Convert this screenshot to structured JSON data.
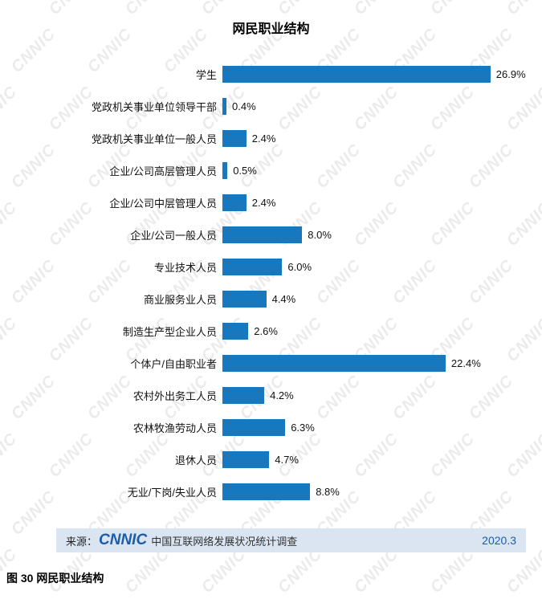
{
  "title": "网民职业结构",
  "watermark": "CNNIC",
  "chart_data": {
    "type": "bar",
    "orientation": "horizontal",
    "title": "网民职业结构",
    "categories": [
      "学生",
      "党政机关事业单位领导干部",
      "党政机关事业单位一般人员",
      "企业/公司高层管理人员",
      "企业/公司中层管理人员",
      "企业/公司一般人员",
      "专业技术人员",
      "商业服务业人员",
      "制造生产型企业人员",
      "个体户/自由职业者",
      "农村外出务工人员",
      "农林牧渔劳动人员",
      "退休人员",
      "无业/下岗/失业人员"
    ],
    "values": [
      26.9,
      0.4,
      2.4,
      0.5,
      2.4,
      8.0,
      6.0,
      4.4,
      2.6,
      22.4,
      4.2,
      6.3,
      4.7,
      8.8
    ],
    "value_labels": [
      "26.9%",
      "0.4%",
      "2.4%",
      "0.5%",
      "2.4%",
      "8.0%",
      "6.0%",
      "4.4%",
      "2.6%",
      "22.4%",
      "4.2%",
      "6.3%",
      "4.7%",
      "8.8%"
    ],
    "xlabel": "",
    "ylabel": "",
    "xlim": [
      0,
      27
    ],
    "grid": false,
    "legend": "none",
    "bar_color": "#1778be"
  },
  "source": {
    "prefix": "来源：",
    "logo": "CNNIC",
    "text": "中国互联网络发展状况统计调查",
    "date": "2020.3",
    "bg_color": "#dbe5f1",
    "accent_color": "#1a5dab"
  },
  "caption": "图 30  网民职业结构"
}
